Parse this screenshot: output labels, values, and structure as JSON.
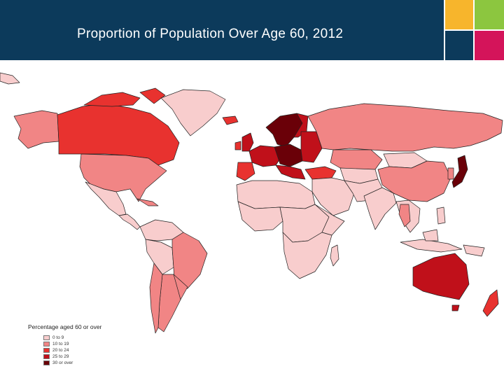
{
  "slide": {
    "title": "Proportion of Population Over Age 60, 2012",
    "header_color": "#0c3a5b",
    "corner_tiles": [
      "#f7b52c",
      "#8cc63f",
      "#0c3a5b",
      "#d4145a"
    ]
  },
  "legend": {
    "title": "Percentage aged 60 or over",
    "items": [
      {
        "label": "0 to 9",
        "color": "#f8cdcd"
      },
      {
        "label": "10 to 19",
        "color": "#f18585"
      },
      {
        "label": "20 to 24",
        "color": "#e8322f"
      },
      {
        "label": "25 to 29",
        "color": "#c0101a"
      },
      {
        "label": "30 or over",
        "color": "#6a0008"
      }
    ]
  },
  "map": {
    "ocean_color": "#ffffff",
    "border_color": "#222222"
  }
}
